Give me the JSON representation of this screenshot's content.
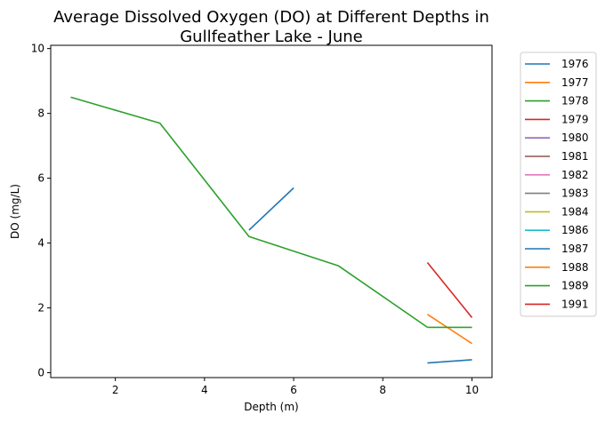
{
  "chart_data": {
    "type": "line",
    "title_lines": [
      "Average Dissolved Oxygen (DO) at Different Depths in",
      "Gullfeather Lake - June"
    ],
    "xlabel": "Depth (m)",
    "ylabel": "DO (mg/L)",
    "xlim": [
      0.55,
      10.45
    ],
    "ylim": [
      -0.15,
      10.1
    ],
    "xticks": [
      2,
      4,
      6,
      8,
      10
    ],
    "yticks": [
      0,
      2,
      4,
      6,
      8,
      10
    ],
    "grid": false,
    "legend_position": "outside-right",
    "series": [
      {
        "name": "1976",
        "color": "#1f77b4",
        "x": [
          9,
          10
        ],
        "y": [
          0.3,
          0.4
        ]
      },
      {
        "name": "1977",
        "color": "#ff7f0e",
        "x": [
          9,
          10
        ],
        "y": [
          1.8,
          0.9
        ]
      },
      {
        "name": "1978",
        "color": "#2ca02c",
        "x": [
          9,
          10
        ],
        "y": [
          1.4,
          1.4
        ]
      },
      {
        "name": "1979",
        "color": "#d62728",
        "x": [
          9,
          10
        ],
        "y": [
          3.4,
          1.7
        ]
      },
      {
        "name": "1980",
        "color": "#9467bd",
        "x": [],
        "y": []
      },
      {
        "name": "1981",
        "color": "#8c564b",
        "x": [],
        "y": []
      },
      {
        "name": "1982",
        "color": "#e377c2",
        "x": [],
        "y": []
      },
      {
        "name": "1983",
        "color": "#7f7f7f",
        "x": [],
        "y": []
      },
      {
        "name": "1984",
        "color": "#bcbd22",
        "x": [],
        "y": []
      },
      {
        "name": "1986",
        "color": "#17becf",
        "x": [],
        "y": []
      },
      {
        "name": "1987",
        "color": "#1f77b4",
        "x": [
          5,
          6
        ],
        "y": [
          4.4,
          5.7
        ]
      },
      {
        "name": "1988",
        "color": "#ff7f0e",
        "x": [],
        "y": []
      },
      {
        "name": "1989",
        "color": "#2ca02c",
        "x": [
          1,
          3,
          5,
          7,
          9
        ],
        "y": [
          8.5,
          7.7,
          4.2,
          3.3,
          1.4
        ]
      },
      {
        "name": "1991",
        "color": "#d62728",
        "x": [],
        "y": []
      }
    ]
  }
}
